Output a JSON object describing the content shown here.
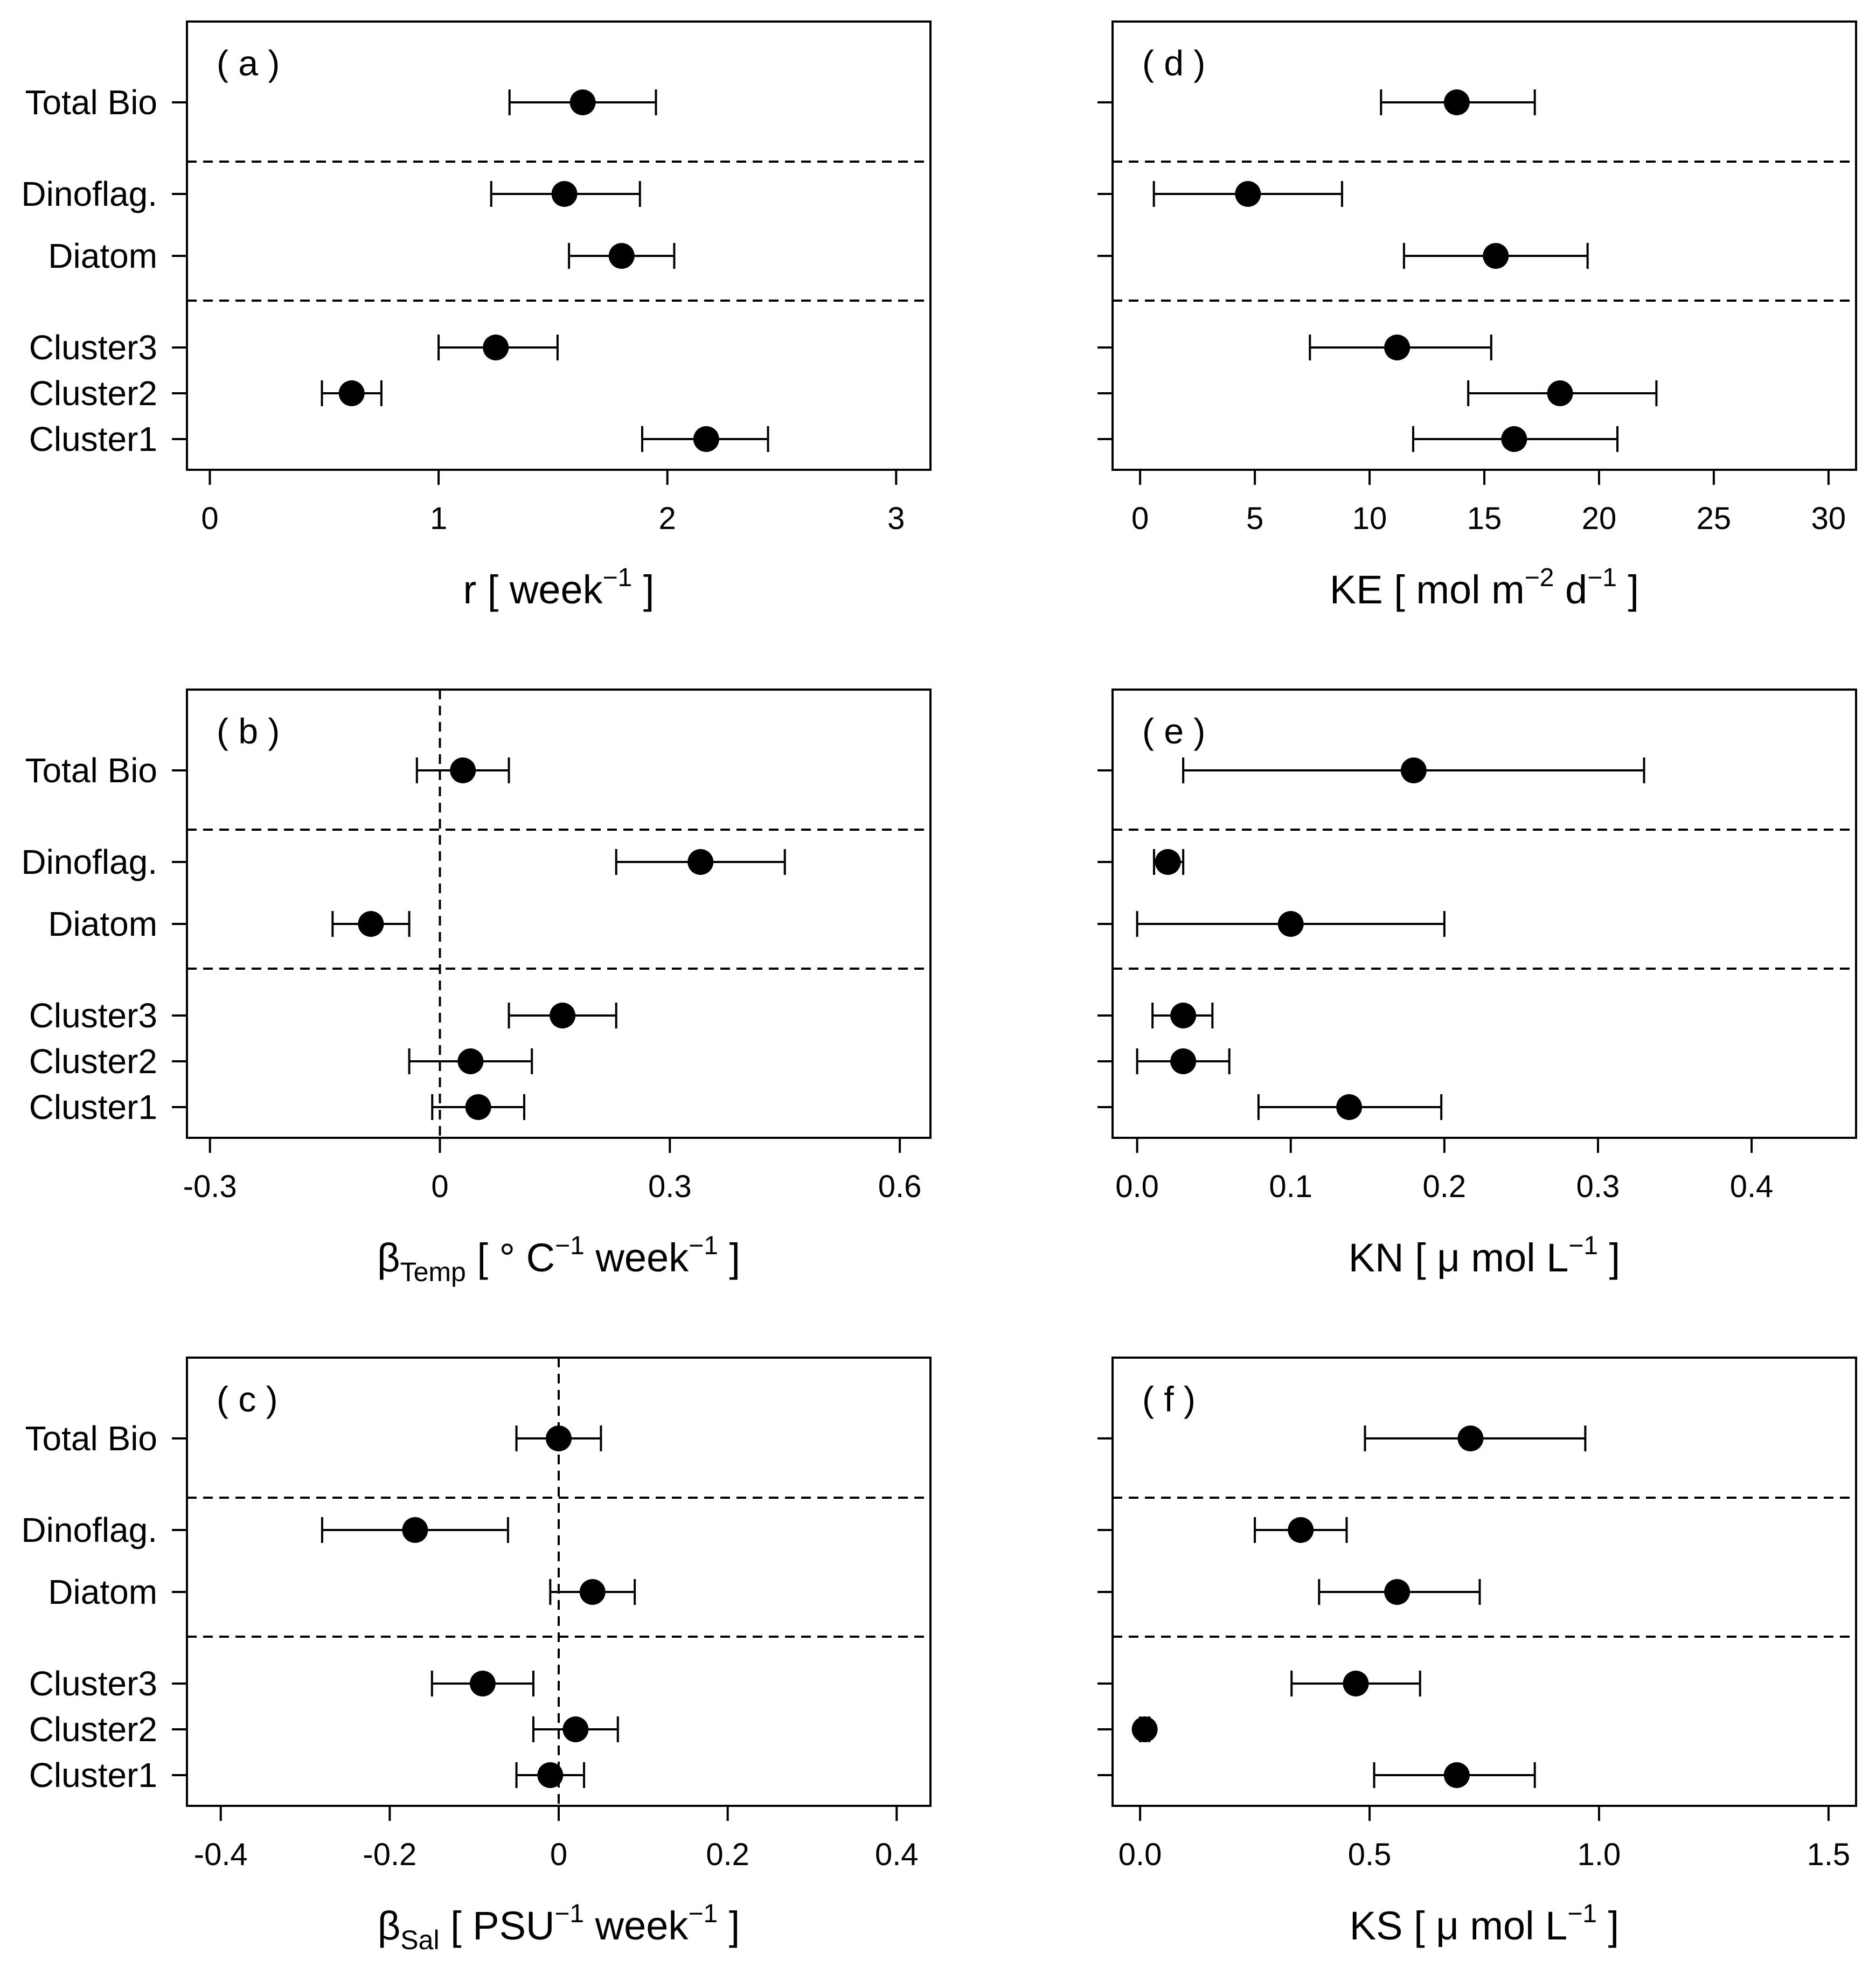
{
  "chart_data": [
    {
      "type": "scatter",
      "panel_label": "( a )",
      "xlabel": {
        "pre": "r [ week",
        "sup": "−1",
        "post": " ]"
      },
      "xlim": [
        -0.1,
        3.15
      ],
      "xticks": [
        0,
        1,
        2,
        3
      ],
      "tick_labels": [
        "0",
        "1",
        "2",
        "3"
      ],
      "ref_line": null,
      "points": [
        {
          "label": "Total Bio",
          "value": 1.63,
          "lower": 1.31,
          "upper": 1.95
        },
        {
          "label": "Dinoflag.",
          "value": 1.55,
          "lower": 1.23,
          "upper": 1.88
        },
        {
          "label": "Diatom",
          "value": 1.8,
          "lower": 1.57,
          "upper": 2.03
        },
        {
          "label": "Cluster3",
          "value": 1.25,
          "lower": 1.0,
          "upper": 1.52
        },
        {
          "label": "Cluster2",
          "value": 0.62,
          "lower": 0.49,
          "upper": 0.75
        },
        {
          "label": "Cluster1",
          "value": 2.17,
          "lower": 1.89,
          "upper": 2.44
        }
      ]
    },
    {
      "type": "scatter",
      "panel_label": "( b )",
      "xlabel": {
        "pre": "β",
        "sub": "Temp",
        "mid": " [ ° C",
        "sup": "−1",
        "post": " week",
        "sup2": "−1",
        "post2": " ]"
      },
      "xlim": [
        -0.33,
        0.64
      ],
      "xticks": [
        -0.3,
        0,
        0.3,
        0.6
      ],
      "tick_labels": [
        "-0.3",
        "0",
        "0.3",
        "0.6"
      ],
      "ref_line": 0,
      "points": [
        {
          "label": "Total Bio",
          "value": 0.03,
          "lower": -0.03,
          "upper": 0.09
        },
        {
          "label": "Dinoflag.",
          "value": 0.34,
          "lower": 0.23,
          "upper": 0.45
        },
        {
          "label": "Diatom",
          "value": -0.09,
          "lower": -0.14,
          "upper": -0.04
        },
        {
          "label": "Cluster3",
          "value": 0.16,
          "lower": 0.09,
          "upper": 0.23
        },
        {
          "label": "Cluster2",
          "value": 0.04,
          "lower": -0.04,
          "upper": 0.12
        },
        {
          "label": "Cluster1",
          "value": 0.05,
          "lower": -0.01,
          "upper": 0.11
        }
      ]
    },
    {
      "type": "scatter",
      "panel_label": "( c )",
      "xlabel": {
        "pre": "β",
        "sub": "Sal",
        "mid": " [ PSU",
        "sup": "−1",
        "post": " week",
        "sup2": "−1",
        "post2": " ]"
      },
      "xlim": [
        -0.44,
        0.44
      ],
      "xticks": [
        -0.4,
        -0.2,
        0,
        0.2,
        0.4
      ],
      "tick_labels": [
        "-0.4",
        "-0.2",
        "0",
        "0.2",
        "0.4"
      ],
      "ref_line": 0,
      "points": [
        {
          "label": "Total Bio",
          "value": 0.0,
          "lower": -0.05,
          "upper": 0.05
        },
        {
          "label": "Dinoflag.",
          "value": -0.17,
          "lower": -0.28,
          "upper": -0.06
        },
        {
          "label": "Diatom",
          "value": 0.04,
          "lower": -0.01,
          "upper": 0.09
        },
        {
          "label": "Cluster3",
          "value": -0.09,
          "lower": -0.15,
          "upper": -0.03
        },
        {
          "label": "Cluster2",
          "value": 0.02,
          "lower": -0.03,
          "upper": 0.07
        },
        {
          "label": "Cluster1",
          "value": -0.01,
          "lower": -0.05,
          "upper": 0.03
        }
      ]
    },
    {
      "type": "scatter",
      "panel_label": "( d )",
      "xlabel": {
        "pre": "KE [ mol m",
        "sup": "−2",
        "post": " d",
        "sup2": "−1",
        "post2": " ]"
      },
      "xlim": [
        -1.2,
        31.2
      ],
      "xticks": [
        0,
        5,
        10,
        15,
        20,
        25,
        30
      ],
      "tick_labels": [
        "0",
        "5",
        "10",
        "15",
        "20",
        "25",
        "30"
      ],
      "ref_line": null,
      "points": [
        {
          "label": "Total Bio",
          "value": 13.8,
          "lower": 10.5,
          "upper": 17.2
        },
        {
          "label": "Dinoflag.",
          "value": 4.7,
          "lower": 0.6,
          "upper": 8.8
        },
        {
          "label": "Diatom",
          "value": 15.5,
          "lower": 11.5,
          "upper": 19.5
        },
        {
          "label": "Cluster3",
          "value": 11.2,
          "lower": 7.4,
          "upper": 15.3
        },
        {
          "label": "Cluster2",
          "value": 18.3,
          "lower": 14.3,
          "upper": 22.5
        },
        {
          "label": "Cluster1",
          "value": 16.3,
          "lower": 11.9,
          "upper": 20.8
        }
      ]
    },
    {
      "type": "scatter",
      "panel_label": "( e )",
      "xlabel": {
        "pre": "KN [ μ mol L",
        "sup": "−1",
        "post": " ]"
      },
      "xlim": [
        -0.016,
        0.468
      ],
      "xticks": [
        0.0,
        0.1,
        0.2,
        0.3,
        0.4
      ],
      "tick_labels": [
        "0.0",
        "0.1",
        "0.2",
        "0.3",
        "0.4"
      ],
      "ref_line": null,
      "points": [
        {
          "label": "Total Bio",
          "value": 0.18,
          "lower": 0.03,
          "upper": 0.33
        },
        {
          "label": "Dinoflag.",
          "value": 0.02,
          "lower": 0.011,
          "upper": 0.03
        },
        {
          "label": "Diatom",
          "value": 0.1,
          "lower": 0.0,
          "upper": 0.2
        },
        {
          "label": "Cluster3",
          "value": 0.03,
          "lower": 0.01,
          "upper": 0.049
        },
        {
          "label": "Cluster2",
          "value": 0.03,
          "lower": 0.0,
          "upper": 0.06
        },
        {
          "label": "Cluster1",
          "value": 0.138,
          "lower": 0.079,
          "upper": 0.198
        }
      ]
    },
    {
      "type": "scatter",
      "panel_label": "( f )",
      "xlabel": {
        "pre": "KS [ μ mol L",
        "sup": "−1",
        "post": " ]"
      },
      "xlim": [
        -0.06,
        1.56
      ],
      "xticks": [
        0.0,
        0.5,
        1.0,
        1.5
      ],
      "tick_labels": [
        "0.0",
        "0.5",
        "1.0",
        "1.5"
      ],
      "ref_line": null,
      "points": [
        {
          "label": "Total Bio",
          "value": 0.72,
          "lower": 0.49,
          "upper": 0.97
        },
        {
          "label": "Dinoflag.",
          "value": 0.35,
          "lower": 0.25,
          "upper": 0.45
        },
        {
          "label": "Diatom",
          "value": 0.56,
          "lower": 0.39,
          "upper": 0.74
        },
        {
          "label": "Cluster3",
          "value": 0.47,
          "lower": 0.33,
          "upper": 0.61
        },
        {
          "label": "Cluster2",
          "value": 0.01,
          "lower": 0.0,
          "upper": 0.02
        },
        {
          "label": "Cluster1",
          "value": 0.69,
          "lower": 0.51,
          "upper": 0.86
        }
      ]
    }
  ]
}
